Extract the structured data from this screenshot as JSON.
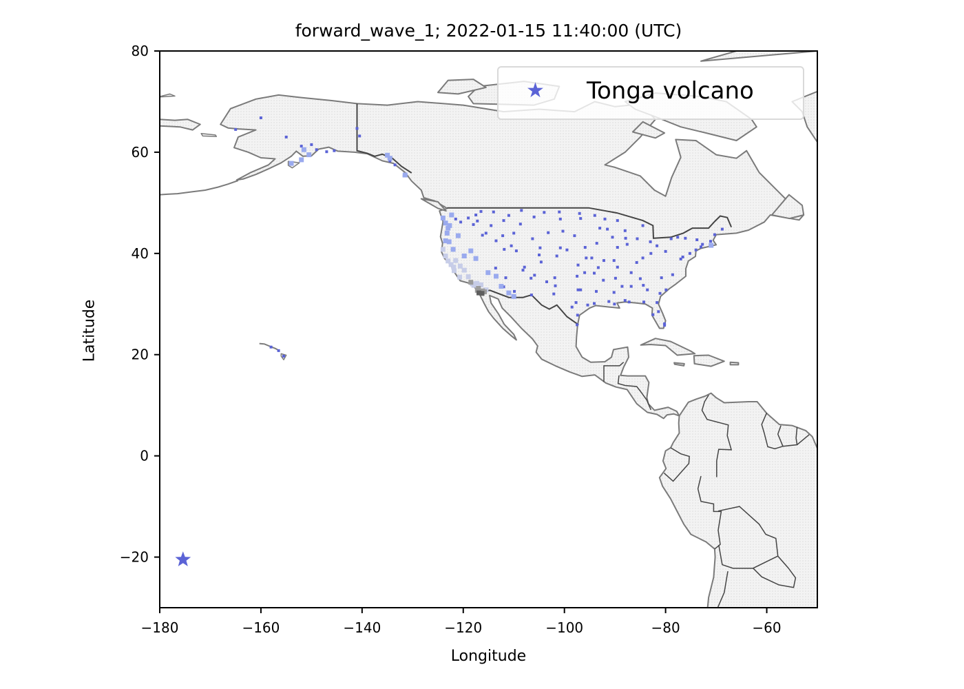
{
  "chart_data": {
    "type": "scatter",
    "title": "forward_wave_1; 2022-01-15 11:40:00 (UTC)",
    "xlabel": "Longitude",
    "ylabel": "Latitude",
    "xlim": [
      -180,
      -50
    ],
    "ylim": [
      -30,
      80
    ],
    "xticks": [
      -180,
      -160,
      -140,
      -120,
      -100,
      -80,
      -60
    ],
    "yticks": [
      -20,
      0,
      20,
      40,
      60,
      80
    ],
    "grid": false,
    "legend": {
      "position": "top-right",
      "entries": [
        {
          "label": "Tonga volcano",
          "marker": "star",
          "color": "#5b63d6"
        }
      ]
    },
    "series": [
      {
        "name": "Tonga volcano",
        "color": "#5b63d6",
        "marker": "star",
        "points": [
          {
            "x": -175.4,
            "y": -20.5
          }
        ]
      },
      {
        "color": "#5b63d6",
        "marker": "square",
        "points": [
          {
            "x": -165,
            "y": 64.5
          },
          {
            "x": -160,
            "y": 66.8
          },
          {
            "x": -155,
            "y": 63
          },
          {
            "x": -152,
            "y": 61.2
          },
          {
            "x": -150,
            "y": 61.5
          },
          {
            "x": -149,
            "y": 60.5
          },
          {
            "x": -147,
            "y": 60.1
          },
          {
            "x": -145.5,
            "y": 60.3
          },
          {
            "x": -141,
            "y": 64.7
          },
          {
            "x": -140.5,
            "y": 63.2
          },
          {
            "x": -134.5,
            "y": 58.3
          },
          {
            "x": -133.5,
            "y": 57.5
          },
          {
            "x": -131.7,
            "y": 55.3
          },
          {
            "x": -122.5,
            "y": 47.5
          },
          {
            "x": -121.5,
            "y": 46.8
          },
          {
            "x": -120.5,
            "y": 46.2
          },
          {
            "x": -119,
            "y": 47
          },
          {
            "x": -117.5,
            "y": 47.6
          },
          {
            "x": -116.5,
            "y": 48.3
          },
          {
            "x": -114,
            "y": 48.2
          },
          {
            "x": -111,
            "y": 47.5
          },
          {
            "x": -108.5,
            "y": 48.5
          },
          {
            "x": -106,
            "y": 47.2
          },
          {
            "x": -104,
            "y": 48.1
          },
          {
            "x": -101,
            "y": 48.2
          },
          {
            "x": -100.8,
            "y": 46.8
          },
          {
            "x": -97,
            "y": 47.9
          },
          {
            "x": -96.8,
            "y": 46.9
          },
          {
            "x": -94,
            "y": 47.5
          },
          {
            "x": -93,
            "y": 45
          },
          {
            "x": -92,
            "y": 46.8
          },
          {
            "x": -89.5,
            "y": 46.5
          },
          {
            "x": -88,
            "y": 44.5
          },
          {
            "x": -84.5,
            "y": 45.5
          },
          {
            "x": -83,
            "y": 42.3
          },
          {
            "x": -85.6,
            "y": 42.9
          },
          {
            "x": -87.9,
            "y": 43
          },
          {
            "x": -87.6,
            "y": 41.8
          },
          {
            "x": -89.5,
            "y": 41.2
          },
          {
            "x": -90.5,
            "y": 43.2
          },
          {
            "x": -91.5,
            "y": 44.8
          },
          {
            "x": -93.6,
            "y": 42
          },
          {
            "x": -95.9,
            "y": 41.2
          },
          {
            "x": -98,
            "y": 43.5
          },
          {
            "x": -100.3,
            "y": 44.4
          },
          {
            "x": -103.2,
            "y": 44.1
          },
          {
            "x": -106.3,
            "y": 42.9
          },
          {
            "x": -108.7,
            "y": 45.8
          },
          {
            "x": -110,
            "y": 44
          },
          {
            "x": -112,
            "y": 46.5
          },
          {
            "x": -114.5,
            "y": 45.5
          },
          {
            "x": -116.2,
            "y": 43.6
          },
          {
            "x": -113.5,
            "y": 42.5
          },
          {
            "x": -111.9,
            "y": 40.8
          },
          {
            "x": -109.5,
            "y": 40.5
          },
          {
            "x": -105,
            "y": 39.7
          },
          {
            "x": -104.6,
            "y": 38.3
          },
          {
            "x": -101.5,
            "y": 39.5
          },
          {
            "x": -99.5,
            "y": 40.7
          },
          {
            "x": -97.3,
            "y": 37.7
          },
          {
            "x": -95.7,
            "y": 39.1
          },
          {
            "x": -94.6,
            "y": 39.1
          },
          {
            "x": -93.3,
            "y": 37.2
          },
          {
            "x": -92.2,
            "y": 38.6
          },
          {
            "x": -90.2,
            "y": 38.6
          },
          {
            "x": -89.5,
            "y": 37.3
          },
          {
            "x": -86.8,
            "y": 36.2
          },
          {
            "x": -85.7,
            "y": 38.2
          },
          {
            "x": -84.5,
            "y": 39.1
          },
          {
            "x": -82.9,
            "y": 40
          },
          {
            "x": -81.7,
            "y": 41.5
          },
          {
            "x": -80,
            "y": 40.4
          },
          {
            "x": -77,
            "y": 38.9
          },
          {
            "x": -76.6,
            "y": 39.3
          },
          {
            "x": -75.2,
            "y": 40
          },
          {
            "x": -74,
            "y": 40.7
          },
          {
            "x": -73,
            "y": 41.3
          },
          {
            "x": -71.1,
            "y": 42.4
          },
          {
            "x": -77.6,
            "y": 43.2
          },
          {
            "x": -78.9,
            "y": 42.9
          },
          {
            "x": -76.1,
            "y": 43
          },
          {
            "x": -73.8,
            "y": 42.7
          },
          {
            "x": -72.7,
            "y": 41.8
          },
          {
            "x": -70.3,
            "y": 43.7
          },
          {
            "x": -68.8,
            "y": 44.8
          },
          {
            "x": -80.8,
            "y": 35.2
          },
          {
            "x": -78.6,
            "y": 35.8
          },
          {
            "x": -79.9,
            "y": 32.8
          },
          {
            "x": -81.1,
            "y": 32.1
          },
          {
            "x": -84.4,
            "y": 33.7
          },
          {
            "x": -86.8,
            "y": 33.5
          },
          {
            "x": -88,
            "y": 30.7
          },
          {
            "x": -90.1,
            "y": 30
          },
          {
            "x": -90.2,
            "y": 32.3
          },
          {
            "x": -92.3,
            "y": 34.7
          },
          {
            "x": -94.1,
            "y": 36.1
          },
          {
            "x": -97.5,
            "y": 35.5
          },
          {
            "x": -96,
            "y": 36.2
          },
          {
            "x": -97.3,
            "y": 32.8
          },
          {
            "x": -96.8,
            "y": 32.8
          },
          {
            "x": -97.7,
            "y": 30.3
          },
          {
            "x": -98.5,
            "y": 29.4
          },
          {
            "x": -95.4,
            "y": 29.8
          },
          {
            "x": -94.1,
            "y": 30.1
          },
          {
            "x": -97.4,
            "y": 27.8
          },
          {
            "x": -97.5,
            "y": 25.9
          },
          {
            "x": -101.9,
            "y": 35.2
          },
          {
            "x": -101.8,
            "y": 33.6
          },
          {
            "x": -102.1,
            "y": 32
          },
          {
            "x": -106.5,
            "y": 31.8
          },
          {
            "x": -106.6,
            "y": 35.1
          },
          {
            "x": -108.2,
            "y": 36.7
          },
          {
            "x": -104.8,
            "y": 41.1
          },
          {
            "x": -100.8,
            "y": 41.1
          },
          {
            "x": -82.5,
            "y": 27.9
          },
          {
            "x": -81.4,
            "y": 28.5
          },
          {
            "x": -80.2,
            "y": 26.1
          },
          {
            "x": -80.2,
            "y": 25.8
          },
          {
            "x": -81.7,
            "y": 30.3
          },
          {
            "x": -84.3,
            "y": 30.4
          },
          {
            "x": -87.2,
            "y": 30.4
          },
          {
            "x": -83.6,
            "y": 32.8
          },
          {
            "x": -85,
            "y": 35
          },
          {
            "x": -89.9,
            "y": 35.1
          },
          {
            "x": -88.6,
            "y": 33.5
          },
          {
            "x": -91.2,
            "y": 30.5
          },
          {
            "x": -93.7,
            "y": 32.5
          },
          {
            "x": -118,
            "y": 45.7
          },
          {
            "x": -117.2,
            "y": 46.4
          },
          {
            "x": -115.5,
            "y": 44
          },
          {
            "x": -112.2,
            "y": 43.5
          },
          {
            "x": -110.5,
            "y": 41.5
          },
          {
            "x": -113.6,
            "y": 37.1
          },
          {
            "x": -111.6,
            "y": 35.2
          },
          {
            "x": -112,
            "y": 33.4
          },
          {
            "x": -110.9,
            "y": 32.2
          },
          {
            "x": -109.9,
            "y": 32.5
          },
          {
            "x": -103.5,
            "y": 34.4
          },
          {
            "x": -107.9,
            "y": 37.3
          },
          {
            "x": -105.9,
            "y": 35.7
          },
          {
            "x": -158,
            "y": 21.5
          },
          {
            "x": -156.5,
            "y": 20.8
          },
          {
            "x": -155.5,
            "y": 19.7
          }
        ]
      },
      {
        "color": "#9aaaee",
        "marker": "square",
        "points": [
          {
            "x": -152,
            "y": 58.5
          },
          {
            "x": -150.5,
            "y": 59.5
          },
          {
            "x": -151.5,
            "y": 60.5
          },
          {
            "x": -154,
            "y": 57.8
          },
          {
            "x": -135,
            "y": 59.4
          },
          {
            "x": -134.5,
            "y": 58.8
          },
          {
            "x": -131.5,
            "y": 55.5
          },
          {
            "x": -124,
            "y": 47
          },
          {
            "x": -123.5,
            "y": 46
          },
          {
            "x": -123,
            "y": 45
          },
          {
            "x": -122.7,
            "y": 45.5
          },
          {
            "x": -122.3,
            "y": 47.6
          },
          {
            "x": -123.2,
            "y": 44
          },
          {
            "x": -123.5,
            "y": 42.5
          },
          {
            "x": -122.8,
            "y": 42.3
          },
          {
            "x": -122,
            "y": 40.8
          },
          {
            "x": -121,
            "y": 43.5
          },
          {
            "x": -119.8,
            "y": 39.5
          },
          {
            "x": -118.5,
            "y": 40.5
          },
          {
            "x": -117.5,
            "y": 39
          },
          {
            "x": -115.1,
            "y": 36.2
          },
          {
            "x": -113.5,
            "y": 35.5
          },
          {
            "x": -112.5,
            "y": 33.5
          },
          {
            "x": -111,
            "y": 32.2
          },
          {
            "x": -110,
            "y": 31.5
          },
          {
            "x": -71,
            "y": 41.6
          }
        ]
      },
      {
        "color": "#c7cde8",
        "marker": "square",
        "points": [
          {
            "x": -124,
            "y": 40.8
          },
          {
            "x": -123.5,
            "y": 39.5
          },
          {
            "x": -123,
            "y": 38.5
          },
          {
            "x": -122.4,
            "y": 37.8
          },
          {
            "x": -121.9,
            "y": 37.3
          },
          {
            "x": -121.5,
            "y": 38.6
          },
          {
            "x": -120.6,
            "y": 37.5
          },
          {
            "x": -119.8,
            "y": 36.7
          },
          {
            "x": -121.8,
            "y": 36.6
          },
          {
            "x": -120.7,
            "y": 35.3
          },
          {
            "x": -119,
            "y": 35.4
          },
          {
            "x": -118.2,
            "y": 34
          },
          {
            "x": -117.3,
            "y": 34.1
          },
          {
            "x": -116.5,
            "y": 33.8
          },
          {
            "x": -117.9,
            "y": 33.7
          },
          {
            "x": -115.5,
            "y": 32.8
          }
        ]
      },
      {
        "color": "#9b9b9b",
        "marker": "square",
        "points": [
          {
            "x": -117.2,
            "y": 32.7
          },
          {
            "x": -117,
            "y": 33.1
          },
          {
            "x": -116.2,
            "y": 32.6
          },
          {
            "x": -115.8,
            "y": 32.4
          },
          {
            "x": -118.5,
            "y": 34.3
          }
        ]
      },
      {
        "color": "#5e5e5e",
        "marker": "square",
        "points": [
          {
            "x": -116.9,
            "y": 32.2
          },
          {
            "x": -116.3,
            "y": 32.1
          }
        ]
      }
    ]
  }
}
